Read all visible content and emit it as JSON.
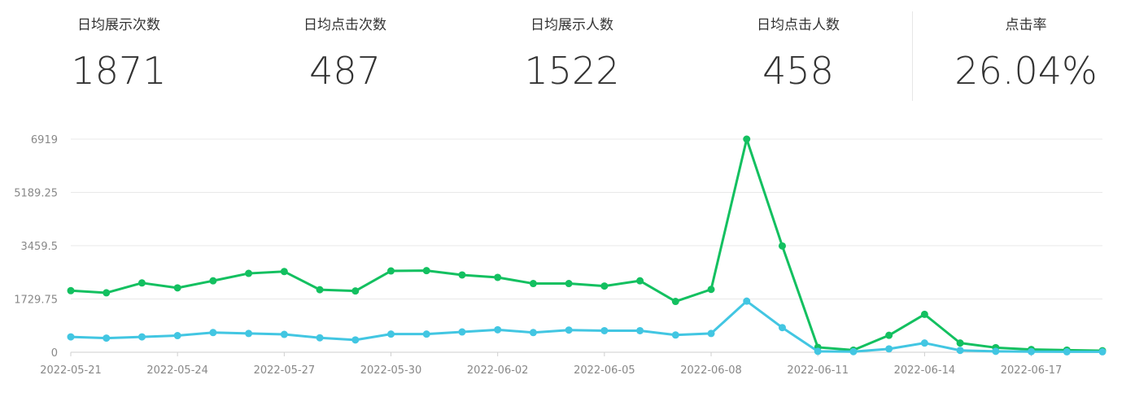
{
  "stats": [
    {
      "label": "日均展示次数",
      "value": "1871"
    },
    {
      "label": "日均点击次数",
      "value": "487"
    },
    {
      "label": "日均展示人数",
      "value": "1522"
    },
    {
      "label": "日均点击人数",
      "value": "458"
    },
    {
      "label": "点击率",
      "value": "26.04%"
    }
  ],
  "chart_data": {
    "type": "line",
    "x": [
      "2022-05-21",
      "2022-05-22",
      "2022-05-23",
      "2022-05-24",
      "2022-05-25",
      "2022-05-26",
      "2022-05-27",
      "2022-05-28",
      "2022-05-29",
      "2022-05-30",
      "2022-05-31",
      "2022-06-01",
      "2022-06-02",
      "2022-06-03",
      "2022-06-04",
      "2022-06-05",
      "2022-06-06",
      "2022-06-07",
      "2022-06-08",
      "2022-06-09",
      "2022-06-10",
      "2022-06-11",
      "2022-06-12",
      "2022-06-13",
      "2022-06-14",
      "2022-06-15",
      "2022-06-16",
      "2022-06-17",
      "2022-06-18",
      "2022-06-19"
    ],
    "x_tick_labels": [
      "2022-05-21",
      "2022-05-24",
      "2022-05-27",
      "2022-05-30",
      "2022-06-02",
      "2022-06-05",
      "2022-06-08",
      "2022-06-11",
      "2022-06-14",
      "2022-06-17"
    ],
    "y_ticks": [
      0,
      1729.75,
      3459.5,
      5189.25,
      6919
    ],
    "y_tick_labels": [
      "0",
      "1729.75",
      "3459.5",
      "5189.25",
      "6919"
    ],
    "ylim": [
      0,
      6919
    ],
    "grid": true,
    "series": [
      {
        "color": "#13c060",
        "values": [
          2000,
          1930,
          2250,
          2090,
          2320,
          2560,
          2620,
          2030,
          1990,
          2640,
          2650,
          2510,
          2430,
          2230,
          2230,
          2150,
          2320,
          1650,
          2040,
          6919,
          3450,
          160,
          70,
          550,
          1230,
          300,
          150,
          90,
          70,
          50
        ]
      },
      {
        "color": "#42c6e2",
        "values": [
          500,
          460,
          500,
          540,
          640,
          610,
          580,
          470,
          400,
          590,
          590,
          660,
          730,
          640,
          720,
          700,
          700,
          560,
          610,
          1660,
          800,
          30,
          20,
          110,
          300,
          60,
          30,
          20,
          15,
          15
        ]
      }
    ]
  }
}
